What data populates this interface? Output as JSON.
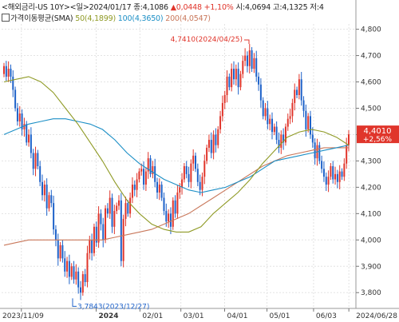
{
  "header": {
    "title": "<해외금리-US 10Y>",
    "period": "<일>",
    "date": "2024/01/17",
    "close_label": "종:4,1086",
    "change": "▲0,0448",
    "change_pct": "+1,10%",
    "open_label": "시:4,0694",
    "high_label": "고:4,1325",
    "low_label": "저:4"
  },
  "legend": {
    "title": "가격이동평균(SMA)",
    "ma50": "50(4,1899)",
    "ma100": "100(4,3650)",
    "ma200": "200(4,0547)"
  },
  "colors": {
    "up": "#e0352b",
    "down": "#1e62c9",
    "ma50": "#8f9a25",
    "ma100": "#1c8fc6",
    "ma200": "#c9785b",
    "price_tag": "#e0352b"
  },
  "chart_data": {
    "type": "candlestick",
    "yaxis": {
      "min": 3.74,
      "max": 4.82,
      "ticks": [
        "3,800",
        "3,900",
        "4,000",
        "4,100",
        "4,200",
        "4,300",
        "4,400",
        "4,500",
        "4,600",
        "4,700",
        "4,800"
      ]
    },
    "xaxis": {
      "ticks": [
        {
          "date": "2023-11-09",
          "label": "2023/11/09"
        },
        {
          "date": "2024-01-01",
          "label": "2024",
          "bold": true
        },
        {
          "date": "2024-02-01",
          "label": "02/01"
        },
        {
          "date": "2024-03-01",
          "label": "03/01"
        },
        {
          "date": "2024-04-01",
          "label": "04/01"
        },
        {
          "date": "2024-05-01",
          "label": "05/01"
        },
        {
          "date": "2024-06-03",
          "label": "06/03"
        },
        {
          "date": "2024-06-28",
          "label": "2024/06/28"
        }
      ]
    },
    "annotations": [
      {
        "label": "4,7410(2024/04/25)",
        "value": 4.741,
        "type": "high"
      },
      {
        "label": "3,7843(2023/12/27)",
        "value": 3.7843,
        "type": "low"
      }
    ],
    "last_price": {
      "label": "4,4010",
      "change_label": "+2,56%",
      "value": 4.401
    },
    "closes": [
      4.66,
      4.62,
      4.65,
      4.62,
      4.57,
      4.5,
      4.45,
      4.48,
      4.42,
      4.44,
      4.37,
      4.4,
      4.33,
      4.27,
      4.33,
      4.28,
      4.22,
      4.17,
      4.21,
      4.12,
      4.17,
      4.14,
      4.04,
      4.0,
      3.93,
      3.98,
      3.93,
      3.88,
      3.92,
      3.86,
      3.9,
      3.85,
      3.88,
      3.82,
      3.8,
      3.87,
      3.84,
      3.95,
      4.0,
      3.95,
      4.05,
      3.99,
      4.1,
      4.06,
      4.0,
      4.12,
      4.1,
      4.16,
      4.05,
      4.11,
      4.13,
      4.15,
      3.92,
      4.08,
      4.14,
      4.1,
      4.16,
      4.21,
      4.19,
      4.23,
      4.26,
      4.27,
      4.21,
      4.26,
      4.31,
      4.25,
      4.28,
      4.22,
      4.18,
      4.21,
      4.16,
      4.11,
      4.07,
      4.1,
      4.05,
      4.15,
      4.1,
      4.18,
      4.2,
      4.23,
      4.28,
      4.25,
      4.22,
      4.29,
      4.32,
      4.27,
      4.22,
      4.19,
      4.24,
      4.3,
      4.35,
      4.38,
      4.33,
      4.4,
      4.36,
      4.42,
      4.47,
      4.52,
      4.55,
      4.62,
      4.58,
      4.65,
      4.61,
      4.65,
      4.58,
      4.63,
      4.68,
      4.7,
      4.66,
      4.72,
      4.65,
      4.69,
      4.62,
      4.59,
      4.53,
      4.47,
      4.5,
      4.44,
      4.46,
      4.41,
      4.43,
      4.38,
      4.35,
      4.4,
      4.37,
      4.43,
      4.46,
      4.47,
      4.52,
      4.57,
      4.55,
      4.61,
      4.53,
      4.49,
      4.42,
      4.47,
      4.4,
      4.37,
      4.31,
      4.36,
      4.3,
      4.27,
      4.24,
      4.21,
      4.24,
      4.28,
      4.23,
      4.25,
      4.22,
      4.26,
      4.24,
      4.29,
      4.36,
      4.401
    ],
    "sma50": [
      4.6,
      4.61,
      4.62,
      4.6,
      4.56,
      4.5,
      4.44,
      4.37,
      4.3,
      4.22,
      4.15,
      4.1,
      4.06,
      4.04,
      4.03,
      4.03,
      4.05,
      4.1,
      4.14,
      4.18,
      4.23,
      4.29,
      4.34,
      4.39,
      4.41,
      4.42,
      4.41,
      4.39,
      4.36
    ],
    "sma100": [
      4.4,
      4.42,
      4.44,
      4.45,
      4.46,
      4.46,
      4.45,
      4.44,
      4.42,
      4.38,
      4.33,
      4.29,
      4.26,
      4.23,
      4.21,
      4.19,
      4.18,
      4.19,
      4.2,
      4.22,
      4.24,
      4.27,
      4.3,
      4.31,
      4.32,
      4.33,
      4.34,
      4.35,
      4.36
    ],
    "sma200": [
      3.98,
      3.99,
      4.0,
      4.0,
      4.0,
      4.0,
      4.0,
      4.0,
      4.0,
      4.01,
      4.02,
      4.03,
      4.04,
      4.06,
      4.08,
      4.1,
      4.13,
      4.16,
      4.19,
      4.22,
      4.25,
      4.28,
      4.3,
      4.32,
      4.33,
      4.34,
      4.35,
      4.35,
      4.35
    ]
  }
}
